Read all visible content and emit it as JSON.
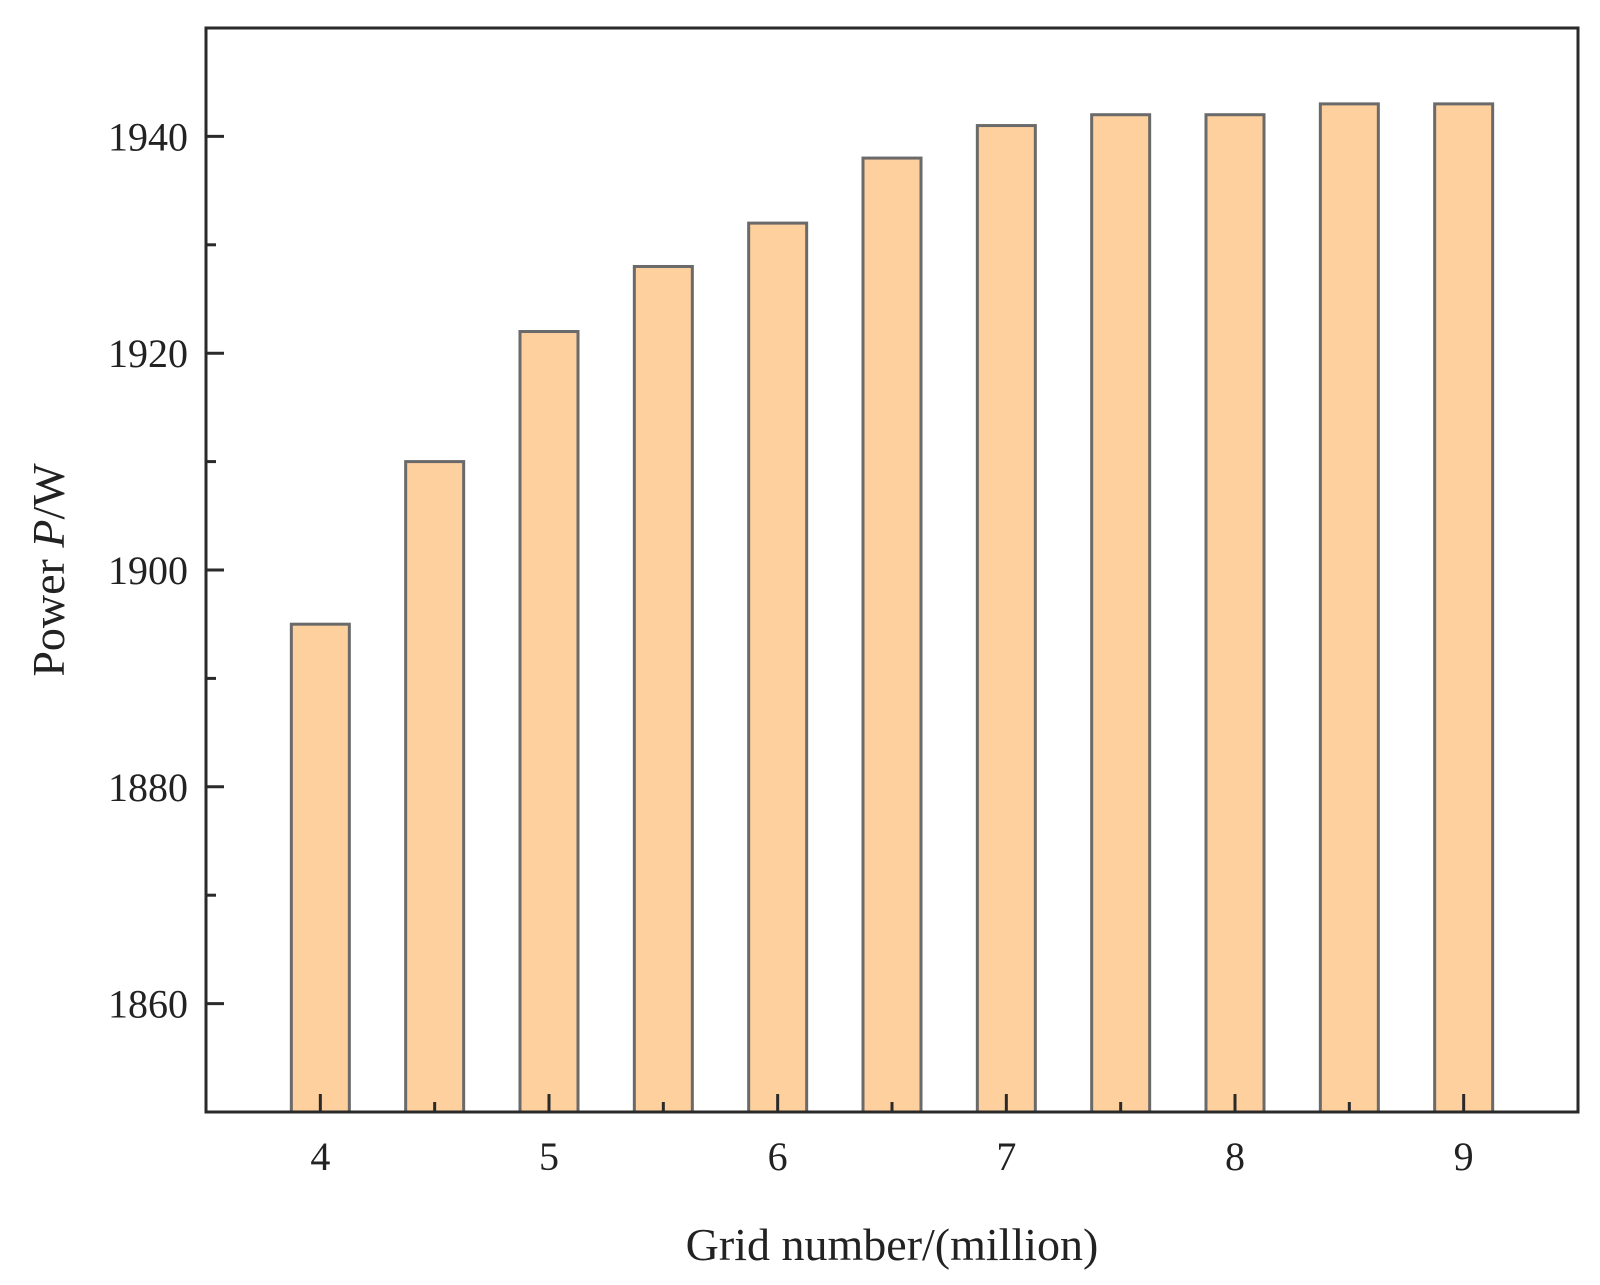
{
  "chart_data": {
    "type": "bar",
    "title": "",
    "xlabel": "Grid number/(million)",
    "ylabel": {
      "prefix": "Power ",
      "symbol": "P",
      "suffix": "/W"
    },
    "x": [
      4.0,
      4.5,
      5.0,
      5.5,
      6.0,
      6.5,
      7.0,
      7.5,
      8.0,
      8.5,
      9.0
    ],
    "values": [
      1895,
      1910,
      1922,
      1928,
      1932,
      1938,
      1941,
      1942,
      1942,
      1943,
      1943
    ],
    "xlim": [
      3.5,
      9.5
    ],
    "ylim": [
      1850,
      1950
    ],
    "x_ticks": [
      4,
      5,
      6,
      7,
      8,
      9
    ],
    "x_minor_ticks": [
      4.5,
      5.5,
      6.5,
      7.5,
      8.5
    ],
    "y_ticks": [
      1860,
      1880,
      1900,
      1920,
      1940
    ],
    "y_minor_ticks": [
      1870,
      1890,
      1910,
      1930
    ],
    "grid": false,
    "legend": "none",
    "colors": {
      "bar_fill": "#fdd09e",
      "bar_stroke": "#6a6a6a",
      "axis": "#2a2a2a"
    }
  }
}
